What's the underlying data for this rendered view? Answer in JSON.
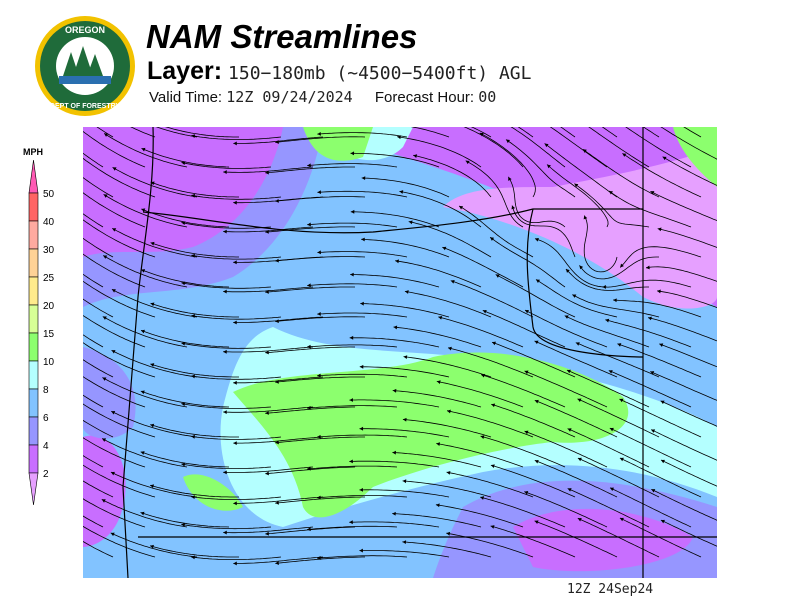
{
  "header": {
    "title": "NAM Streamlines",
    "layer_label": "Layer:",
    "layer_value": "150−180mb (~4500−5400ft) AGL",
    "valid_label": "Valid Time:",
    "valid_value": "12Z 09/24/2024",
    "forecast_label": "Forecast Hour:",
    "forecast_value": "00"
  },
  "logo": {
    "text": "OREGON DEPARTMENT OF FORESTRY"
  },
  "legend": {
    "unit": "MPH",
    "ticks": [
      "50",
      "40",
      "30",
      "25",
      "20",
      "15",
      "10",
      "8",
      "6",
      "4",
      "2"
    ],
    "colors": {
      "above50": "#ff5ab4",
      "40-50": "#ff6464",
      "30-40": "#ffaaa0",
      "25-30": "#ffd296",
      "20-25": "#ffeb8c",
      "15-20": "#d7ff96",
      "10-15": "#8cff6e",
      "8-10": "#b4ffff",
      "6-8": "#82c3ff",
      "4-6": "#9696ff",
      "2-4": "#c86eff",
      "below2": "#e6a0ff"
    }
  },
  "footer": {
    "timestamp": "12Z 24Sep24"
  }
}
